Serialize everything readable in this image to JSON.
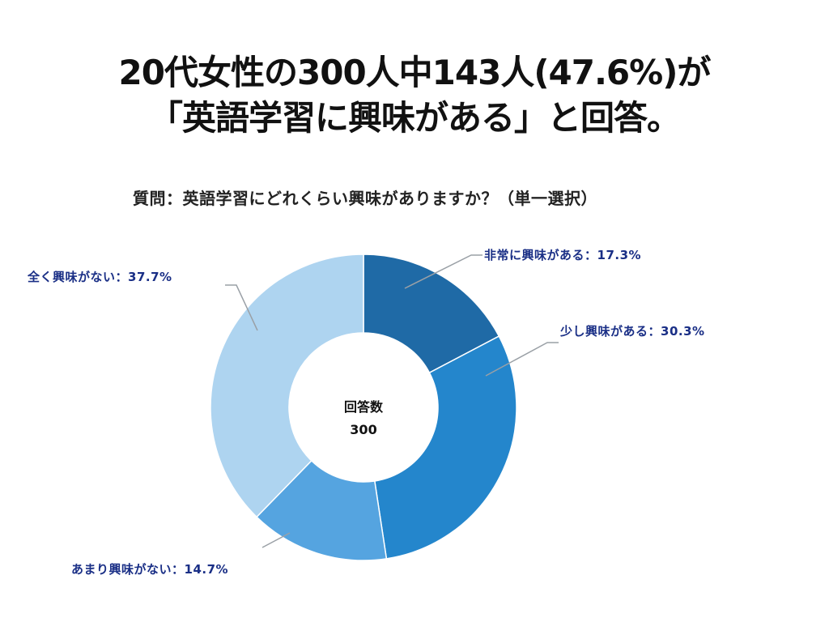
{
  "headline": {
    "line1": "20代女性の300人中143人(47.6%)が",
    "line2": "「英語学習に興味がある」と回答。"
  },
  "chart_data": {
    "type": "pie",
    "title": "質問：英語学習にどれくらい興味がありますか？（単一選択）",
    "center_label": "回答数",
    "center_value": "300",
    "label_color": "#1a2f86",
    "leader_color": "#9aa0a6",
    "slices": [
      {
        "label": "非常に興味がある：17.3%",
        "value": 17.3,
        "color": "#1f6aa6"
      },
      {
        "label": "少し興味がある：30.3%",
        "value": 30.3,
        "color": "#2486cc"
      },
      {
        "label": "あまり興味がない：14.7%",
        "value": 14.7,
        "color": "#55a4e0"
      },
      {
        "label": "全く興味がない：37.7%",
        "value": 37.7,
        "color": "#aed4f0"
      }
    ]
  }
}
